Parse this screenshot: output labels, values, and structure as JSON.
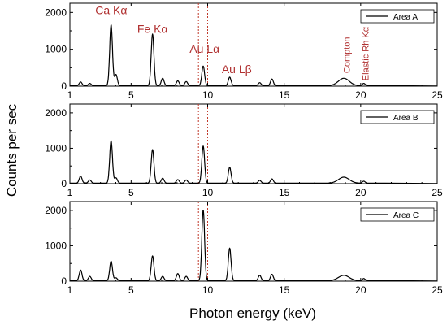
{
  "chart_data": {
    "type": "line",
    "xlabel": "Photon energy (keV)",
    "ylabel": "Counts per sec",
    "xlim": [
      1,
      25
    ],
    "ylim": [
      0,
      2250
    ],
    "x_ticks": [
      1,
      5,
      10,
      15,
      20,
      25
    ],
    "y_ticks": [
      0,
      1000,
      2000
    ],
    "grid": false,
    "legend_position": "top-right",
    "vertical_markers": [
      9.4,
      10.0
    ],
    "marker_color": "#c0392b",
    "annotation_color": "#b03030",
    "annotations": [
      {
        "text": "Ca Kα",
        "x": 3.7,
        "y": 1950,
        "size": "big"
      },
      {
        "text": "Fe Kα",
        "x": 6.4,
        "y": 1450,
        "size": "big"
      },
      {
        "text": "Au Lα",
        "x": 9.8,
        "y": 900,
        "size": "big"
      },
      {
        "text": "Au Lβ",
        "x": 11.9,
        "y": 350,
        "size": "big"
      },
      {
        "text": "Compton",
        "x": 19.3,
        "y": 350,
        "size": "small",
        "rotated": true
      },
      {
        "text": "Elastic Rh Kα",
        "x": 20.5,
        "y": 150,
        "size": "small",
        "rotated": true
      }
    ],
    "peak_width": 0.09,
    "panels": [
      {
        "name": "Area A",
        "peaks": [
          {
            "x": 1.7,
            "y": 100
          },
          {
            "x": 2.3,
            "y": 60
          },
          {
            "x": 3.69,
            "y": 1650
          },
          {
            "x": 4.01,
            "y": 300
          },
          {
            "x": 6.4,
            "y": 1400
          },
          {
            "x": 7.06,
            "y": 200
          },
          {
            "x": 8.05,
            "y": 130
          },
          {
            "x": 8.6,
            "y": 110
          },
          {
            "x": 9.71,
            "y": 530
          },
          {
            "x": 11.44,
            "y": 230
          },
          {
            "x": 13.4,
            "y": 80
          },
          {
            "x": 14.2,
            "y": 180
          },
          {
            "x": 18.9,
            "y": 200,
            "w": 0.35
          },
          {
            "x": 20.2,
            "y": 60
          }
        ]
      },
      {
        "name": "Area B",
        "peaks": [
          {
            "x": 1.7,
            "y": 200
          },
          {
            "x": 2.3,
            "y": 90
          },
          {
            "x": 3.69,
            "y": 1200
          },
          {
            "x": 4.01,
            "y": 150
          },
          {
            "x": 6.4,
            "y": 950
          },
          {
            "x": 7.06,
            "y": 140
          },
          {
            "x": 8.05,
            "y": 100
          },
          {
            "x": 8.6,
            "y": 90
          },
          {
            "x": 9.71,
            "y": 1050
          },
          {
            "x": 11.44,
            "y": 450
          },
          {
            "x": 13.4,
            "y": 80
          },
          {
            "x": 14.2,
            "y": 120
          },
          {
            "x": 18.9,
            "y": 170,
            "w": 0.35
          },
          {
            "x": 20.2,
            "y": 55
          }
        ]
      },
      {
        "name": "Area C",
        "peaks": [
          {
            "x": 1.7,
            "y": 300
          },
          {
            "x": 2.3,
            "y": 120
          },
          {
            "x": 3.69,
            "y": 550
          },
          {
            "x": 4.01,
            "y": 80
          },
          {
            "x": 6.4,
            "y": 700
          },
          {
            "x": 7.06,
            "y": 120
          },
          {
            "x": 8.05,
            "y": 200
          },
          {
            "x": 8.6,
            "y": 120
          },
          {
            "x": 9.71,
            "y": 2000
          },
          {
            "x": 11.44,
            "y": 920
          },
          {
            "x": 13.4,
            "y": 150
          },
          {
            "x": 14.2,
            "y": 180
          },
          {
            "x": 18.9,
            "y": 150,
            "w": 0.35
          },
          {
            "x": 20.2,
            "y": 60
          }
        ]
      }
    ]
  }
}
